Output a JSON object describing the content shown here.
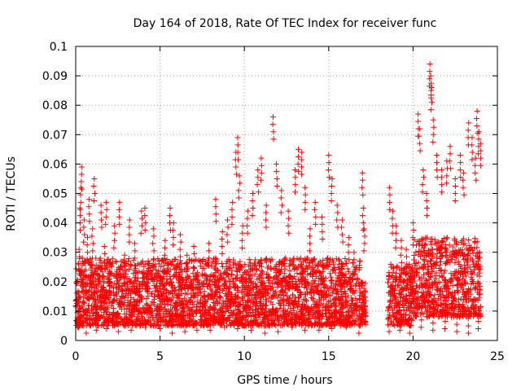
{
  "chart_data": {
    "type": "scatter",
    "title": "Day 164 of 2018, Rate Of TEC Index for receiver func",
    "xlabel": "GPS time / hours",
    "ylabel": "ROTI / TECUs",
    "xlim": [
      0,
      25
    ],
    "ylim": [
      0,
      0.1
    ],
    "xticks": [
      "0",
      "5",
      "10",
      "15",
      "20",
      "25"
    ],
    "yticks": [
      "0",
      "0.01",
      "0.02",
      "0.03",
      "0.04",
      "0.05",
      "0.06",
      "0.07",
      "0.08",
      "0.09",
      "0.1"
    ],
    "grid": true,
    "legend": "none",
    "marker": "+",
    "color": "#ff0000",
    "series": [
      {
        "points": [
          [
            0.1,
            0.012
          ],
          [
            0.2,
            0.031
          ],
          [
            0.25,
            0.045
          ],
          [
            0.3,
            0.052
          ],
          [
            0.35,
            0.059
          ],
          [
            0.4,
            0.028
          ],
          [
            0.5,
            0.041
          ],
          [
            0.6,
            0.022
          ],
          [
            0.7,
            0.035
          ],
          [
            0.8,
            0.048
          ],
          [
            1.0,
            0.038
          ],
          [
            1.1,
            0.055
          ],
          [
            1.2,
            0.019
          ],
          [
            1.5,
            0.046
          ],
          [
            1.7,
            0.032
          ],
          [
            1.8,
            0.047
          ],
          [
            2.0,
            0.026
          ],
          [
            2.3,
            0.039
          ],
          [
            2.6,
            0.047
          ],
          [
            2.9,
            0.029
          ],
          [
            3.2,
            0.041
          ],
          [
            3.5,
            0.033
          ],
          [
            3.9,
            0.044
          ],
          [
            4.1,
            0.045
          ],
          [
            4.3,
            0.027
          ],
          [
            4.6,
            0.038
          ],
          [
            5.0,
            0.021
          ],
          [
            5.3,
            0.034
          ],
          [
            5.6,
            0.045
          ],
          [
            5.8,
            0.04
          ],
          [
            6.2,
            0.036
          ],
          [
            6.6,
            0.029
          ],
          [
            7.0,
            0.032
          ],
          [
            7.5,
            0.027
          ],
          [
            7.9,
            0.033
          ],
          [
            8.3,
            0.048
          ],
          [
            8.7,
            0.037
          ],
          [
            9.0,
            0.041
          ],
          [
            9.3,
            0.047
          ],
          [
            9.5,
            0.064
          ],
          [
            9.6,
            0.069
          ],
          [
            9.7,
            0.056
          ],
          [
            9.9,
            0.039
          ],
          [
            10.2,
            0.044
          ],
          [
            10.5,
            0.05
          ],
          [
            10.8,
            0.058
          ],
          [
            11.0,
            0.062
          ],
          [
            11.3,
            0.046
          ],
          [
            11.7,
            0.076
          ],
          [
            11.9,
            0.06
          ],
          [
            12.2,
            0.051
          ],
          [
            12.6,
            0.044
          ],
          [
            13.0,
            0.058
          ],
          [
            13.2,
            0.065
          ],
          [
            13.4,
            0.064
          ],
          [
            13.6,
            0.052
          ],
          [
            13.9,
            0.038
          ],
          [
            14.2,
            0.047
          ],
          [
            14.6,
            0.042
          ],
          [
            15.0,
            0.063
          ],
          [
            15.2,
            0.055
          ],
          [
            15.5,
            0.046
          ],
          [
            15.8,
            0.041
          ],
          [
            16.2,
            0.035
          ],
          [
            16.5,
            0.03
          ],
          [
            17.0,
            0.057
          ],
          [
            17.05,
            0.045
          ],
          [
            17.1,
            0.038
          ],
          [
            18.6,
            0.052
          ],
          [
            18.8,
            0.044
          ],
          [
            19.0,
            0.039
          ],
          [
            19.3,
            0.034
          ],
          [
            19.6,
            0.031
          ],
          [
            20.0,
            0.04
          ],
          [
            20.3,
            0.077
          ],
          [
            20.4,
            0.072
          ],
          [
            20.6,
            0.058
          ],
          [
            20.8,
            0.05
          ],
          [
            21.0,
            0.094
          ],
          [
            21.05,
            0.09
          ],
          [
            21.1,
            0.086
          ],
          [
            21.2,
            0.075
          ],
          [
            21.4,
            0.063
          ],
          [
            21.7,
            0.058
          ],
          [
            22.0,
            0.061
          ],
          [
            22.2,
            0.066
          ],
          [
            22.5,
            0.055
          ],
          [
            22.8,
            0.063
          ],
          [
            23.0,
            0.057
          ],
          [
            23.3,
            0.074
          ],
          [
            23.5,
            0.069
          ],
          [
            23.7,
            0.062
          ],
          [
            23.8,
            0.078
          ],
          [
            23.9,
            0.071
          ],
          [
            24.0,
            0.067
          ],
          [
            0.15,
            0.007
          ],
          [
            0.6,
            0.01
          ],
          [
            1.2,
            0.006
          ],
          [
            1.8,
            0.009
          ],
          [
            2.5,
            0.008
          ],
          [
            3.3,
            0.011
          ],
          [
            4.1,
            0.007
          ],
          [
            5.0,
            0.004
          ],
          [
            5.7,
            0.01
          ],
          [
            6.5,
            0.008
          ],
          [
            7.2,
            0.006
          ],
          [
            8.0,
            0.011
          ],
          [
            8.8,
            0.007
          ],
          [
            9.6,
            0.009
          ],
          [
            10.4,
            0.006
          ],
          [
            11.2,
            0.01
          ],
          [
            12.0,
            0.008
          ],
          [
            12.8,
            0.007
          ],
          [
            13.6,
            0.011
          ],
          [
            14.4,
            0.006
          ],
          [
            15.2,
            0.009
          ],
          [
            16.0,
            0.007
          ],
          [
            16.8,
            0.01
          ],
          [
            17.0,
            0.013
          ],
          [
            18.6,
            0.008
          ],
          [
            19.2,
            0.006
          ],
          [
            19.8,
            0.01
          ],
          [
            20.5,
            0.007
          ],
          [
            21.2,
            0.011
          ],
          [
            21.9,
            0.009
          ],
          [
            22.6,
            0.008
          ],
          [
            23.3,
            0.01
          ],
          [
            23.9,
            0.009
          ]
        ]
      }
    ],
    "dense_bands": [
      {
        "x_from": 0.0,
        "x_to": 16.9,
        "y_low": 0.005,
        "y_high": 0.028
      },
      {
        "x_from": 16.9,
        "x_to": 17.2,
        "y_low": 0.005,
        "y_high": 0.02
      },
      {
        "x_from": 18.5,
        "x_to": 20.0,
        "y_low": 0.005,
        "y_high": 0.026
      },
      {
        "x_from": 20.0,
        "x_to": 24.0,
        "y_low": 0.008,
        "y_high": 0.035
      }
    ]
  }
}
